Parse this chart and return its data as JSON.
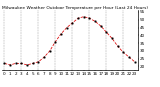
{
  "title": "Milwaukee Weather Outdoor Temperature per Hour (Last 24 Hours)",
  "hours": [
    0,
    1,
    2,
    3,
    4,
    5,
    6,
    7,
    8,
    9,
    10,
    11,
    12,
    13,
    14,
    15,
    16,
    17,
    18,
    19,
    20,
    21,
    22,
    23
  ],
  "temps": [
    22,
    21,
    22,
    22,
    21,
    22,
    23,
    26,
    30,
    36,
    41,
    45,
    48,
    51,
    52,
    51,
    49,
    46,
    42,
    38,
    33,
    29,
    26,
    23
  ],
  "line_color": "#dd0000",
  "marker_color": "#000000",
  "bg_color": "#ffffff",
  "grid_color": "#888888",
  "text_color": "#000000",
  "ylim": [
    18,
    56
  ],
  "ytick_values": [
    20,
    25,
    30,
    35,
    40,
    45,
    50,
    55
  ],
  "ytick_labels": [
    "20",
    "25",
    "30",
    "35",
    "40",
    "45",
    "50",
    "55"
  ],
  "xtick_positions": [
    0,
    1,
    2,
    3,
    4,
    5,
    6,
    7,
    8,
    9,
    10,
    11,
    12,
    13,
    14,
    15,
    16,
    17,
    18,
    19,
    20,
    21,
    22,
    23
  ],
  "grid_positions": [
    0,
    3,
    6,
    9,
    12,
    15,
    18,
    21
  ],
  "title_fontsize": 3.2,
  "tick_fontsize": 3.0,
  "linewidth": 0.55,
  "markersize": 1.0,
  "figsize": [
    1.6,
    0.87
  ],
  "dpi": 100
}
